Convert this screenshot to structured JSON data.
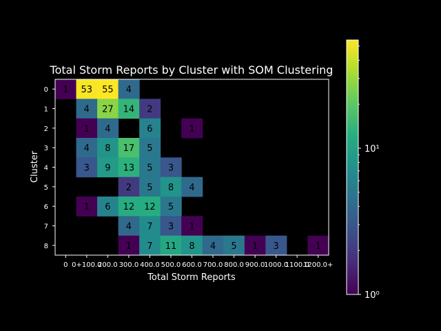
{
  "chart_data": {
    "type": "heatmap",
    "title": "Total Storm Reports by Cluster with SOM Clustering",
    "xlabel": "Total Storm Reports",
    "ylabel": "Cluster",
    "x_categories": [
      "0",
      "0+100.0",
      "200.0",
      "300.0",
      "400.0",
      "500.0",
      "600.0",
      "700.0",
      "800.0",
      "900.0",
      "1000.0",
      "1100.0",
      "1200.0+"
    ],
    "x_tick_labels": [
      "0",
      "0+100.0",
      "200.0",
      "300.0",
      "400.0",
      "500.0",
      "600.0",
      "700.0",
      "800.0",
      "900.0",
      "1000.0",
      "1100.0",
      "1200.0+"
    ],
    "y_categories": [
      "0",
      "1",
      "2",
      "3",
      "4",
      "5",
      "6",
      "7",
      "8"
    ],
    "values": [
      [
        1,
        53,
        55,
        4,
        null,
        null,
        null,
        null,
        null,
        null,
        null,
        null,
        null
      ],
      [
        null,
        4,
        27,
        14,
        2,
        null,
        null,
        null,
        null,
        null,
        null,
        null,
        null
      ],
      [
        null,
        1,
        4,
        null,
        6,
        null,
        1,
        null,
        null,
        null,
        null,
        null,
        null
      ],
      [
        null,
        4,
        8,
        17,
        5,
        null,
        null,
        null,
        null,
        null,
        null,
        null,
        null
      ],
      [
        null,
        3,
        9,
        13,
        5,
        3,
        null,
        null,
        null,
        null,
        null,
        null,
        null
      ],
      [
        null,
        null,
        null,
        2,
        5,
        8,
        4,
        null,
        null,
        null,
        null,
        null,
        null
      ],
      [
        null,
        1,
        6,
        12,
        12,
        5,
        null,
        null,
        null,
        null,
        null,
        null,
        null
      ],
      [
        null,
        null,
        null,
        4,
        7,
        3,
        1,
        null,
        null,
        null,
        null,
        null,
        null
      ],
      [
        null,
        null,
        null,
        1,
        7,
        11,
        8,
        4,
        5,
        1,
        3,
        null,
        1
      ]
    ],
    "colorbar": {
      "scale": "log",
      "colormap": "viridis",
      "min": 1,
      "max": 55,
      "tick_labels": [
        {
          "value": 1,
          "label": "10⁰"
        },
        {
          "value": 10,
          "label": "10¹"
        }
      ]
    },
    "grid": false
  },
  "colors": {
    "background": "#000000",
    "text": "#ffffff",
    "cell_text": "#000000"
  }
}
